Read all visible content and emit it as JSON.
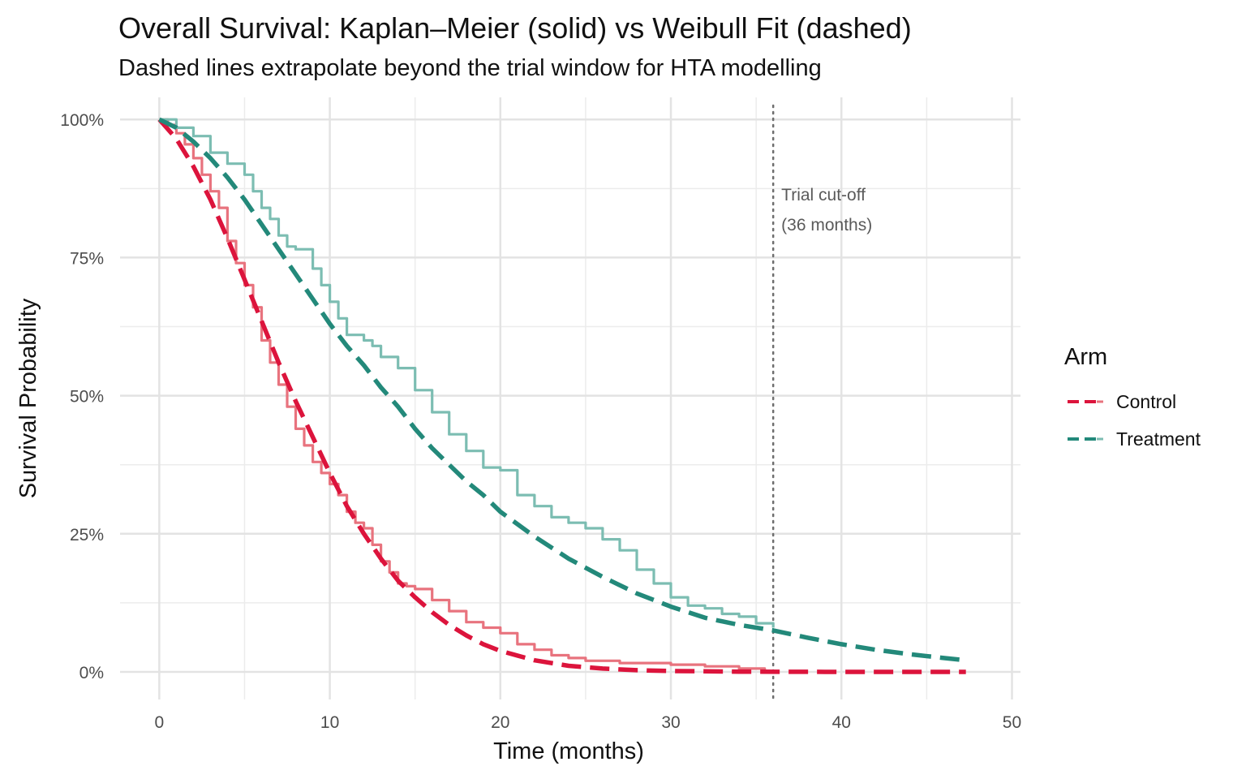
{
  "chart_data": {
    "type": "line",
    "title": "Overall Survival: Kaplan–Meier (solid) vs Weibull Fit (dashed)",
    "subtitle": "Dashed lines extrapolate beyond the trial window for HTA modelling",
    "xlabel": "Time (months)",
    "ylabel": "Survival Probability",
    "xlim": [
      -2.3,
      50.5
    ],
    "ylim": [
      -0.05,
      1.04
    ],
    "x_ticks": [
      0,
      10,
      20,
      30,
      40,
      50
    ],
    "x_tick_labels": [
      "0",
      "10",
      "20",
      "30",
      "40",
      "50"
    ],
    "y_ticks": [
      0,
      0.25,
      0.5,
      0.75,
      1.0
    ],
    "y_tick_labels": [
      "0%",
      "25%",
      "50%",
      "75%",
      "100%"
    ],
    "cutoff": {
      "x": 36,
      "label_line1": "Trial cut-off",
      "label_line2": "(36 months)"
    },
    "legend": {
      "title": "Arm",
      "position": "right",
      "entries": [
        "Control",
        "Treatment"
      ]
    },
    "series": [
      {
        "name": "Control",
        "color": "#DC143C",
        "km_color": "#E8737E",
        "km": [
          [
            0,
            1.0
          ],
          [
            0.5,
            0.99
          ],
          [
            1,
            0.975
          ],
          [
            1.5,
            0.955
          ],
          [
            2,
            0.93
          ],
          [
            2.5,
            0.9
          ],
          [
            3,
            0.87
          ],
          [
            3.5,
            0.84
          ],
          [
            4,
            0.78
          ],
          [
            4.5,
            0.74
          ],
          [
            5,
            0.7
          ],
          [
            5.5,
            0.66
          ],
          [
            6,
            0.6
          ],
          [
            6.5,
            0.56
          ],
          [
            7,
            0.52
          ],
          [
            7.5,
            0.48
          ],
          [
            8,
            0.44
          ],
          [
            8.5,
            0.41
          ],
          [
            9,
            0.38
          ],
          [
            9.5,
            0.36
          ],
          [
            10,
            0.34
          ],
          [
            10.5,
            0.32
          ],
          [
            11,
            0.29
          ],
          [
            11.5,
            0.27
          ],
          [
            12,
            0.26
          ],
          [
            12.5,
            0.23
          ],
          [
            13,
            0.2
          ],
          [
            13.5,
            0.18
          ],
          [
            14,
            0.16
          ],
          [
            14.5,
            0.155
          ],
          [
            15,
            0.15
          ],
          [
            16,
            0.13
          ],
          [
            17,
            0.11
          ],
          [
            18,
            0.09
          ],
          [
            19,
            0.08
          ],
          [
            20,
            0.07
          ],
          [
            21,
            0.05
          ],
          [
            22,
            0.04
          ],
          [
            23,
            0.03
          ],
          [
            24,
            0.025
          ],
          [
            25,
            0.02
          ],
          [
            27,
            0.016
          ],
          [
            30,
            0.013
          ],
          [
            32,
            0.01
          ],
          [
            34,
            0.006
          ],
          [
            35.5,
            0.004
          ]
        ],
        "fit": [
          [
            0,
            1.0
          ],
          [
            1,
            0.965
          ],
          [
            2,
            0.915
          ],
          [
            3,
            0.855
          ],
          [
            4,
            0.785
          ],
          [
            5,
            0.71
          ],
          [
            6,
            0.635
          ],
          [
            7,
            0.56
          ],
          [
            8,
            0.49
          ],
          [
            9,
            0.425
          ],
          [
            10,
            0.36
          ],
          [
            11,
            0.3
          ],
          [
            12,
            0.25
          ],
          [
            13,
            0.205
          ],
          [
            14,
            0.165
          ],
          [
            15,
            0.135
          ],
          [
            16,
            0.108
          ],
          [
            17,
            0.085
          ],
          [
            18,
            0.066
          ],
          [
            19,
            0.05
          ],
          [
            20,
            0.038
          ],
          [
            22,
            0.021
          ],
          [
            24,
            0.011
          ],
          [
            26,
            0.006
          ],
          [
            28,
            0.003
          ],
          [
            30,
            0.0015
          ],
          [
            34,
            0.0004
          ],
          [
            40,
            0.0
          ],
          [
            47.3,
            0.0
          ]
        ]
      },
      {
        "name": "Treatment",
        "color": "#23897A",
        "km_color": "#7CBDB2",
        "km": [
          [
            0,
            1.0
          ],
          [
            1,
            0.985
          ],
          [
            2,
            0.97
          ],
          [
            3,
            0.94
          ],
          [
            4,
            0.92
          ],
          [
            5,
            0.9
          ],
          [
            5.5,
            0.87
          ],
          [
            6,
            0.84
          ],
          [
            6.5,
            0.82
          ],
          [
            7,
            0.79
          ],
          [
            7.5,
            0.77
          ],
          [
            8,
            0.765
          ],
          [
            9,
            0.73
          ],
          [
            9.5,
            0.7
          ],
          [
            10,
            0.67
          ],
          [
            10.5,
            0.64
          ],
          [
            11,
            0.61
          ],
          [
            12,
            0.6
          ],
          [
            12.5,
            0.59
          ],
          [
            13,
            0.57
          ],
          [
            14,
            0.55
          ],
          [
            15,
            0.51
          ],
          [
            16,
            0.47
          ],
          [
            17,
            0.43
          ],
          [
            18,
            0.4
          ],
          [
            19,
            0.37
          ],
          [
            20,
            0.365
          ],
          [
            21,
            0.32
          ],
          [
            22,
            0.3
          ],
          [
            23,
            0.28
          ],
          [
            24,
            0.27
          ],
          [
            25,
            0.26
          ],
          [
            26,
            0.24
          ],
          [
            27,
            0.22
          ],
          [
            28,
            0.185
          ],
          [
            29,
            0.16
          ],
          [
            30,
            0.135
          ],
          [
            31,
            0.12
          ],
          [
            32,
            0.115
          ],
          [
            33,
            0.105
          ],
          [
            34,
            0.1
          ],
          [
            35,
            0.088
          ],
          [
            36,
            0.08
          ]
        ],
        "fit": [
          [
            0,
            1.0
          ],
          [
            1,
            0.985
          ],
          [
            2,
            0.96
          ],
          [
            3,
            0.93
          ],
          [
            4,
            0.895
          ],
          [
            5,
            0.855
          ],
          [
            6,
            0.81
          ],
          [
            7,
            0.765
          ],
          [
            8,
            0.72
          ],
          [
            9,
            0.675
          ],
          [
            10,
            0.63
          ],
          [
            11,
            0.59
          ],
          [
            12,
            0.555
          ],
          [
            13,
            0.515
          ],
          [
            14,
            0.48
          ],
          [
            15,
            0.44
          ],
          [
            16,
            0.405
          ],
          [
            17,
            0.375
          ],
          [
            18,
            0.345
          ],
          [
            19,
            0.32
          ],
          [
            20,
            0.29
          ],
          [
            22,
            0.245
          ],
          [
            24,
            0.205
          ],
          [
            26,
            0.172
          ],
          [
            28,
            0.142
          ],
          [
            30,
            0.118
          ],
          [
            32,
            0.098
          ],
          [
            34,
            0.085
          ],
          [
            36,
            0.075
          ],
          [
            38,
            0.062
          ],
          [
            40,
            0.05
          ],
          [
            42,
            0.04
          ],
          [
            44,
            0.032
          ],
          [
            46,
            0.025
          ],
          [
            47.3,
            0.021
          ]
        ]
      }
    ]
  }
}
